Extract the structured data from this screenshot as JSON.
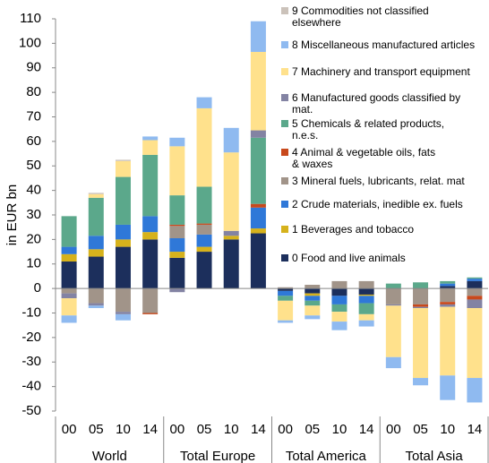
{
  "chart_data": {
    "type": "stacked_bar",
    "y_label": "in EUR bn",
    "categories": [
      "00",
      "05",
      "10",
      "14",
      "00",
      "05",
      "10",
      "14",
      "00",
      "05",
      "10",
      "14",
      "00",
      "05",
      "10",
      "14"
    ],
    "groups": [
      "World",
      "Total Europe",
      "Total America",
      "Total Asia"
    ],
    "ylim": [
      -50,
      110
    ],
    "yticks": [
      -50,
      -40,
      -30,
      -20,
      -10,
      0,
      10,
      20,
      30,
      40,
      50,
      60,
      70,
      80,
      90,
      100,
      110
    ],
    "grid": false,
    "legend": "top-right",
    "series": [
      {
        "name": "0 Food and live animals",
        "color": "#1c2f5c",
        "values": [
          11,
          13,
          17,
          20,
          12.5,
          15,
          20,
          22.5,
          -1,
          -2,
          -3,
          -2.5,
          0,
          0,
          1,
          3
        ]
      },
      {
        "name": "1 Beverages and tobacco",
        "color": "#d6b21c",
        "values": [
          3,
          3,
          3,
          3,
          2.5,
          2,
          1.5,
          2,
          0,
          -1,
          0,
          -0.5,
          0,
          0,
          0,
          0
        ]
      },
      {
        "name": "2 Crude materials, inedible ex. fuels",
        "color": "#2f78d8",
        "values": [
          3,
          5.5,
          6,
          6.5,
          5.5,
          5,
          0,
          8.5,
          -2,
          -2,
          -3.5,
          -3,
          0,
          0,
          1,
          1
        ]
      },
      {
        "name": "3 Mineral fuels, lubricants, relat. mat",
        "color": "#a19489",
        "values": [
          -2,
          -6,
          -9.5,
          -10,
          5,
          4,
          0,
          0,
          0.5,
          1.5,
          3,
          3,
          -6.5,
          -6.5,
          -5.5,
          -3
        ]
      },
      {
        "name": "4 Animal & vegetable oils, fats & waxes",
        "color": "#c8491c",
        "values": [
          0,
          0,
          0,
          -0.5,
          0.5,
          0.5,
          0,
          1.5,
          0,
          0,
          0,
          0,
          0,
          -1,
          -1,
          -1.5
        ]
      },
      {
        "name": "5 Chemicals & related products, n.e.s.",
        "color": "#5ba88b",
        "values": [
          12.5,
          15.5,
          19.5,
          25,
          12,
          15,
          0,
          27,
          -2,
          -2,
          -3,
          -4.5,
          2,
          2.5,
          1,
          0.5
        ]
      },
      {
        "name": "6 Manufactured goods classified by mat.",
        "color": "#8383a3",
        "values": [
          -2,
          -1,
          -1,
          0,
          -1.5,
          0,
          2,
          3,
          0,
          0,
          0,
          0,
          -0.5,
          -0.5,
          -1,
          -3.5
        ]
      },
      {
        "name": "7 Machinery and transport equipment",
        "color": "#ffe18c",
        "values": [
          -7,
          1.5,
          6.5,
          6,
          20,
          32,
          32,
          32,
          -8,
          -4,
          -4,
          -2.5,
          -21,
          -28.5,
          -28,
          -28.5
        ]
      },
      {
        "name": "8 Miscellaneous manufactured articles",
        "color": "#8fbaf0",
        "values": [
          -3,
          -1,
          -2.5,
          1.5,
          3.5,
          4.5,
          10,
          12.5,
          -1,
          -1.5,
          -3.5,
          -2.5,
          -4.5,
          -3,
          -10,
          -10
        ]
      },
      {
        "name": "9 Commodities not classified elsewhere",
        "color": "#cbc2ba",
        "values": [
          0,
          0.5,
          0.5,
          0,
          0,
          0,
          0,
          0,
          0,
          0,
          0,
          0,
          0,
          0,
          0,
          0
        ]
      }
    ]
  }
}
